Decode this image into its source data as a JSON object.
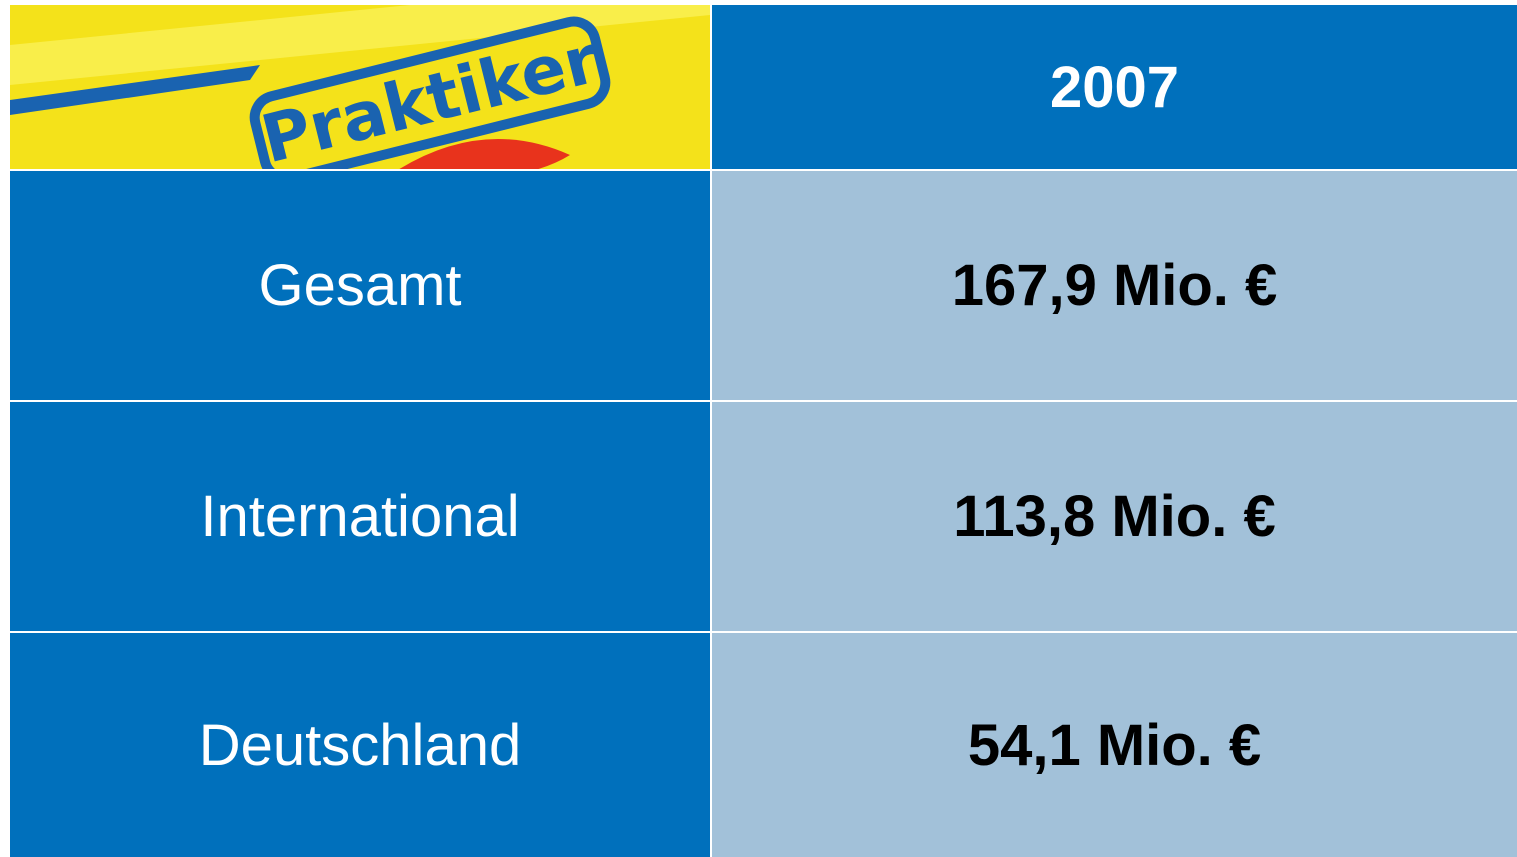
{
  "logo": {
    "text": "Praktiker"
  },
  "table": {
    "header": "2007",
    "rows": [
      [
        "Gesamt",
        "167,9 Mio. €"
      ],
      [
        "International",
        "113,8 Mio. €"
      ],
      [
        "Deutschland",
        "54,1 Mio. €"
      ]
    ]
  }
}
